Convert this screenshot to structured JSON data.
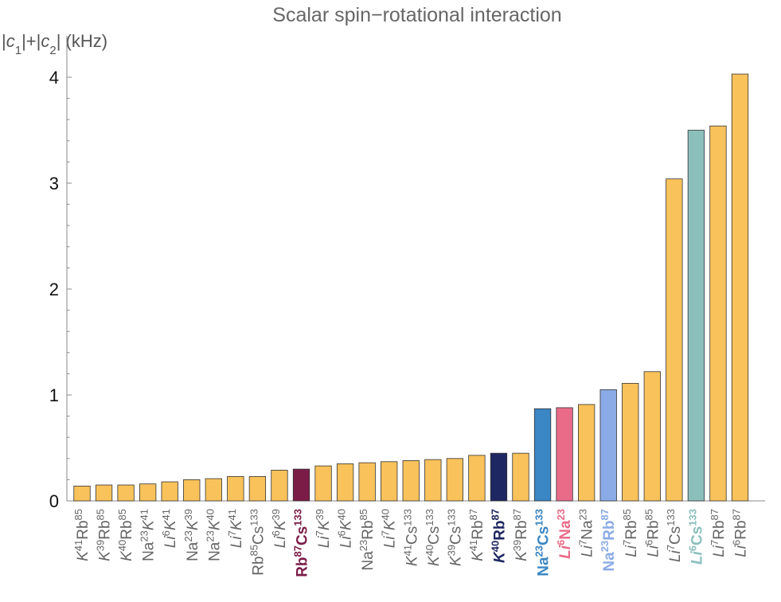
{
  "chart_data": {
    "type": "bar",
    "title": "Scalar spin−rotational interaction",
    "ylabel": "|c1|+|c2| (kHz)",
    "ylim": [
      0,
      4.2
    ],
    "yticks": [
      "0",
      "1",
      "2",
      "3",
      "4"
    ],
    "grid": false,
    "legend": "none",
    "default_color": "#F9C25A",
    "categories": [
      {
        "label": [
          [
            "K",
            "i"
          ],
          [
            "41",
            "s"
          ],
          [
            "Rb",
            ""
          ],
          [
            "85",
            "s"
          ]
        ],
        "value": 0.14,
        "color": "",
        "highlight": false
      },
      {
        "label": [
          [
            "K",
            "i"
          ],
          [
            "39",
            "s"
          ],
          [
            "Rb",
            ""
          ],
          [
            "85",
            "s"
          ]
        ],
        "value": 0.15,
        "color": "",
        "highlight": false
      },
      {
        "label": [
          [
            "K",
            "i"
          ],
          [
            "40",
            "s"
          ],
          [
            "Rb",
            ""
          ],
          [
            "85",
            "s"
          ]
        ],
        "value": 0.15,
        "color": "",
        "highlight": false
      },
      {
        "label": [
          [
            "Na",
            ""
          ],
          [
            "23",
            "s"
          ],
          [
            "K",
            "i"
          ],
          [
            "41",
            "s"
          ]
        ],
        "value": 0.16,
        "color": "",
        "highlight": false
      },
      {
        "label": [
          [
            "Li",
            "i"
          ],
          [
            "6",
            "s"
          ],
          [
            "K",
            "i"
          ],
          [
            "41",
            "s"
          ]
        ],
        "value": 0.18,
        "color": "",
        "highlight": false
      },
      {
        "label": [
          [
            "Na",
            ""
          ],
          [
            "23",
            "s"
          ],
          [
            "K",
            "i"
          ],
          [
            "39",
            "s"
          ]
        ],
        "value": 0.2,
        "color": "",
        "highlight": false
      },
      {
        "label": [
          [
            "Na",
            ""
          ],
          [
            "23",
            "s"
          ],
          [
            "K",
            "i"
          ],
          [
            "40",
            "s"
          ]
        ],
        "value": 0.21,
        "color": "",
        "highlight": false
      },
      {
        "label": [
          [
            "Li",
            "i"
          ],
          [
            "7",
            "s"
          ],
          [
            "K",
            "i"
          ],
          [
            "41",
            "s"
          ]
        ],
        "value": 0.23,
        "color": "",
        "highlight": false
      },
      {
        "label": [
          [
            "Rb",
            ""
          ],
          [
            "85",
            "s"
          ],
          [
            "Cs",
            ""
          ],
          [
            "133",
            "s"
          ]
        ],
        "value": 0.23,
        "color": "",
        "highlight": false
      },
      {
        "label": [
          [
            "Li",
            "i"
          ],
          [
            "6",
            "s"
          ],
          [
            "K",
            "i"
          ],
          [
            "39",
            "s"
          ]
        ],
        "value": 0.29,
        "color": "",
        "highlight": false
      },
      {
        "label": [
          [
            "Rb",
            ""
          ],
          [
            "87",
            "s"
          ],
          [
            "Cs",
            ""
          ],
          [
            "133",
            "s"
          ]
        ],
        "value": 0.3,
        "color": "#7B1C47",
        "highlight": true
      },
      {
        "label": [
          [
            "Li",
            "i"
          ],
          [
            "7",
            "s"
          ],
          [
            "K",
            "i"
          ],
          [
            "39",
            "s"
          ]
        ],
        "value": 0.33,
        "color": "",
        "highlight": false
      },
      {
        "label": [
          [
            "Li",
            "i"
          ],
          [
            "6",
            "s"
          ],
          [
            "K",
            "i"
          ],
          [
            "40",
            "s"
          ]
        ],
        "value": 0.35,
        "color": "",
        "highlight": false
      },
      {
        "label": [
          [
            "Na",
            ""
          ],
          [
            "23",
            "s"
          ],
          [
            "Rb",
            ""
          ],
          [
            "85",
            "s"
          ]
        ],
        "value": 0.36,
        "color": "",
        "highlight": false
      },
      {
        "label": [
          [
            "Li",
            "i"
          ],
          [
            "7",
            "s"
          ],
          [
            "K",
            "i"
          ],
          [
            "40",
            "s"
          ]
        ],
        "value": 0.37,
        "color": "",
        "highlight": false
      },
      {
        "label": [
          [
            "K",
            "i"
          ],
          [
            "41",
            "s"
          ],
          [
            "Cs",
            ""
          ],
          [
            "133",
            "s"
          ]
        ],
        "value": 0.38,
        "color": "",
        "highlight": false
      },
      {
        "label": [
          [
            "K",
            "i"
          ],
          [
            "40",
            "s"
          ],
          [
            "Cs",
            ""
          ],
          [
            "133",
            "s"
          ]
        ],
        "value": 0.39,
        "color": "",
        "highlight": false
      },
      {
        "label": [
          [
            "K",
            "i"
          ],
          [
            "39",
            "s"
          ],
          [
            "Cs",
            ""
          ],
          [
            "133",
            "s"
          ]
        ],
        "value": 0.4,
        "color": "",
        "highlight": false
      },
      {
        "label": [
          [
            "K",
            "i"
          ],
          [
            "41",
            "s"
          ],
          [
            "Rb",
            ""
          ],
          [
            "87",
            "s"
          ]
        ],
        "value": 0.43,
        "color": "",
        "highlight": false
      },
      {
        "label": [
          [
            "K",
            "i"
          ],
          [
            "40",
            "s"
          ],
          [
            "Rb",
            ""
          ],
          [
            "87",
            "s"
          ]
        ],
        "value": 0.45,
        "color": "#1E2761",
        "highlight": true
      },
      {
        "label": [
          [
            "K",
            "i"
          ],
          [
            "39",
            "s"
          ],
          [
            "Rb",
            ""
          ],
          [
            "87",
            "s"
          ]
        ],
        "value": 0.45,
        "color": "",
        "highlight": false
      },
      {
        "label": [
          [
            "Na",
            ""
          ],
          [
            "23",
            "s"
          ],
          [
            "Cs",
            ""
          ],
          [
            "133",
            "s"
          ]
        ],
        "value": 0.87,
        "color": "#3B86C4",
        "highlight": true
      },
      {
        "label": [
          [
            "Li",
            "i"
          ],
          [
            "6",
            "s"
          ],
          [
            "Na",
            ""
          ],
          [
            "23",
            "s"
          ]
        ],
        "value": 0.88,
        "color": "#E96B88",
        "highlight": true
      },
      {
        "label": [
          [
            "Li",
            "i"
          ],
          [
            "7",
            "s"
          ],
          [
            "Na",
            ""
          ],
          [
            "23",
            "s"
          ]
        ],
        "value": 0.91,
        "color": "",
        "highlight": false
      },
      {
        "label": [
          [
            "Na",
            ""
          ],
          [
            "23",
            "s"
          ],
          [
            "Rb",
            ""
          ],
          [
            "87",
            "s"
          ]
        ],
        "value": 1.05,
        "color": "#8AABE6",
        "highlight": true
      },
      {
        "label": [
          [
            "Li",
            "i"
          ],
          [
            "7",
            "s"
          ],
          [
            "Rb",
            ""
          ],
          [
            "85",
            "s"
          ]
        ],
        "value": 1.11,
        "color": "",
        "highlight": false
      },
      {
        "label": [
          [
            "Li",
            "i"
          ],
          [
            "6",
            "s"
          ],
          [
            "Rb",
            ""
          ],
          [
            "85",
            "s"
          ]
        ],
        "value": 1.22,
        "color": "",
        "highlight": false
      },
      {
        "label": [
          [
            "Li",
            "i"
          ],
          [
            "7",
            "s"
          ],
          [
            "Cs",
            ""
          ],
          [
            "133",
            "s"
          ]
        ],
        "value": 3.04,
        "color": "",
        "highlight": false
      },
      {
        "label": [
          [
            "Li",
            "i"
          ],
          [
            "6",
            "s"
          ],
          [
            "Cs",
            ""
          ],
          [
            "133",
            "s"
          ]
        ],
        "value": 3.5,
        "color": "#8BBFBC",
        "highlight": true
      },
      {
        "label": [
          [
            "Li",
            "i"
          ],
          [
            "7",
            "s"
          ],
          [
            "Rb",
            ""
          ],
          [
            "87",
            "s"
          ]
        ],
        "value": 3.54,
        "color": "",
        "highlight": false
      },
      {
        "label": [
          [
            "Li",
            "i"
          ],
          [
            "6",
            "s"
          ],
          [
            "Rb",
            ""
          ],
          [
            "87",
            "s"
          ]
        ],
        "value": 4.03,
        "color": "",
        "highlight": false
      }
    ]
  }
}
